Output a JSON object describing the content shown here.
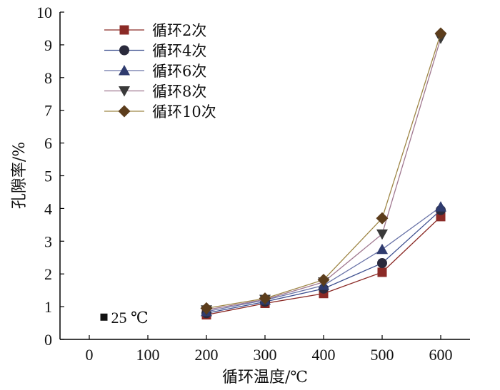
{
  "chart_data": {
    "type": "line",
    "title": "",
    "xlabel": "循环温度/℃",
    "ylabel": "孔隙率/%",
    "xlim": [
      -50,
      650
    ],
    "ylim": [
      0,
      10
    ],
    "xticks": [
      0,
      100,
      200,
      300,
      400,
      500,
      600
    ],
    "yticks": [
      0,
      1,
      2,
      3,
      4,
      5,
      6,
      7,
      8,
      9,
      10
    ],
    "x": [
      200,
      300,
      400,
      500,
      600
    ],
    "series": [
      {
        "name": "循环2次",
        "marker": "square",
        "color": "#8b2a26",
        "markerColor": "#8b2a26",
        "values": [
          0.75,
          1.1,
          1.4,
          2.05,
          3.75
        ]
      },
      {
        "name": "循环4次",
        "marker": "circle",
        "color": "#3d4f8f",
        "markerColor": "#2a2a3c",
        "values": [
          0.8,
          1.15,
          1.55,
          2.33,
          3.95
        ]
      },
      {
        "name": "循环6次",
        "marker": "triangle-up",
        "color": "#6a74a8",
        "markerColor": "#2f3b6e",
        "values": [
          0.85,
          1.2,
          1.65,
          2.75,
          4.05
        ]
      },
      {
        "name": "循环8次",
        "marker": "triangle-down",
        "color": "#a07890",
        "markerColor": "#3a3a3a",
        "values": [
          0.9,
          1.22,
          1.75,
          3.22,
          9.2
        ]
      },
      {
        "name": "循环10次",
        "marker": "diamond",
        "color": "#9e8646",
        "markerColor": "#5c3d1c",
        "values": [
          0.95,
          1.25,
          1.82,
          3.7,
          9.35
        ]
      }
    ],
    "annotation": {
      "marker": "square",
      "text": "25 ℃",
      "x": 25,
      "y": 0.68
    },
    "legend_position": "top-left"
  }
}
